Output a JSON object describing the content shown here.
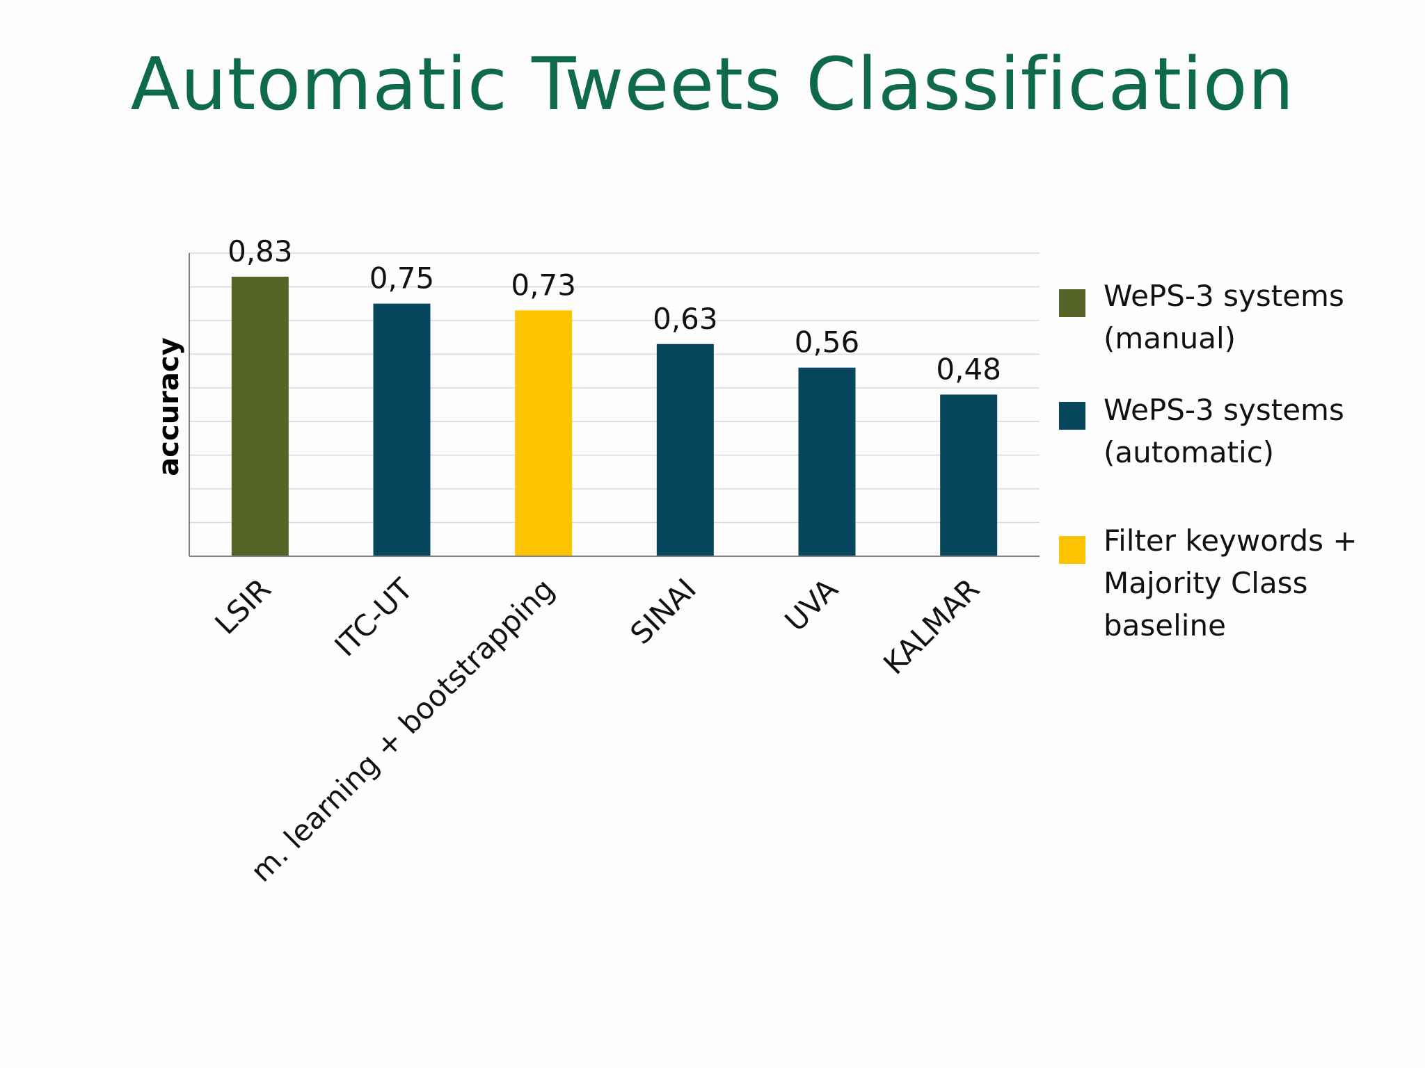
{
  "slide": {
    "title": "Automatic Tweets Classification"
  },
  "colors": {
    "manual": "#566427",
    "automatic": "#08465e",
    "baseline": "#fbc300",
    "title": "#0f6a4c",
    "grid": "#d9d9d9",
    "axis": "#7f7f7f"
  },
  "chart_data": {
    "type": "bar",
    "ylabel": "accuracy",
    "ylim": [
      0,
      0.9
    ],
    "grid": true,
    "legend_position": "right",
    "categories": [
      "LSIR",
      "ITC-UT",
      "m. learning + bootstrapping",
      "SINAI",
      "UVA",
      "KALMAR"
    ],
    "values": [
      0.83,
      0.75,
      0.73,
      0.63,
      0.56,
      0.48
    ],
    "value_labels": [
      "0,83",
      "0,75",
      "0,73",
      "0,63",
      "0,56",
      "0,48"
    ],
    "bar_groups": [
      "manual",
      "automatic",
      "baseline",
      "automatic",
      "automatic",
      "automatic"
    ],
    "legend": [
      {
        "group": "manual",
        "lines": [
          "WePS-3 systems",
          "(manual)"
        ]
      },
      {
        "group": "automatic",
        "lines": [
          "WePS-3 systems",
          "(automatic)"
        ]
      },
      {
        "group": "baseline",
        "lines": [
          "Filter keywords +",
          "Majority Class",
          "baseline"
        ]
      }
    ]
  }
}
